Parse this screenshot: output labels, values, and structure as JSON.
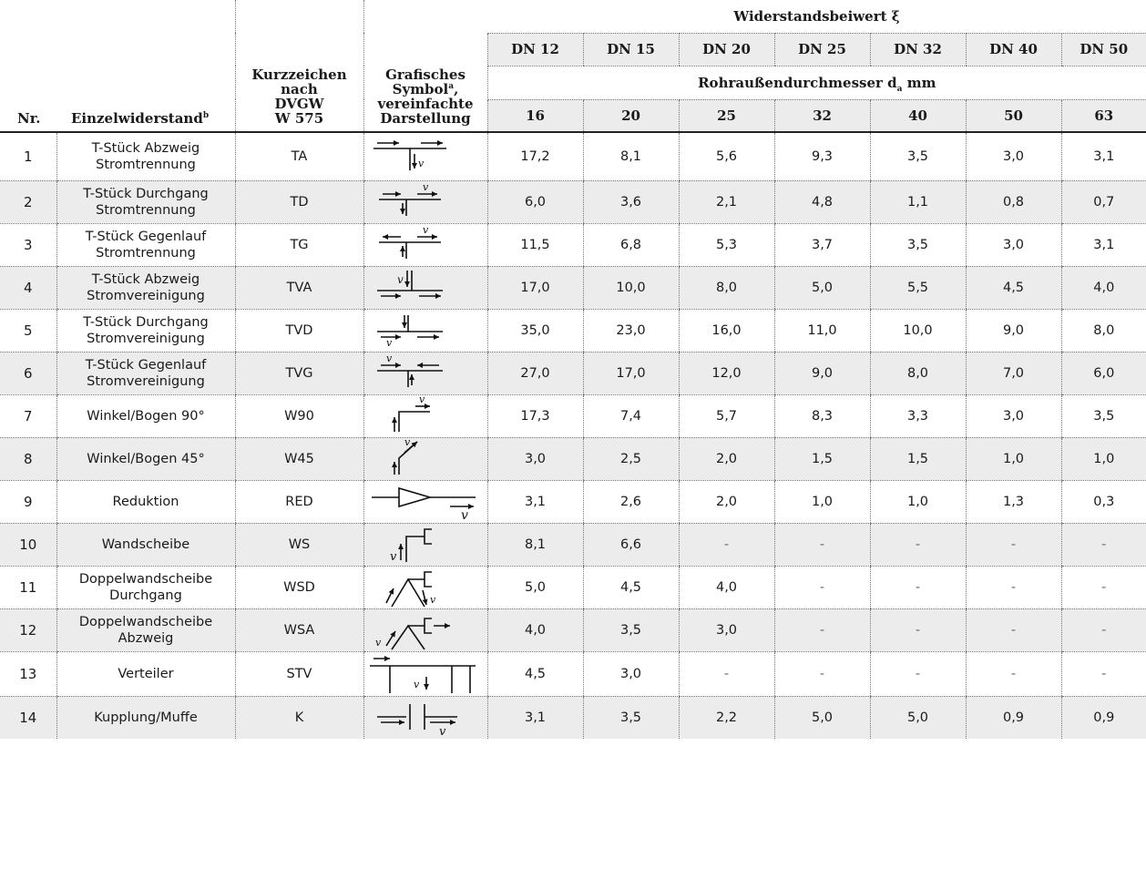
{
  "header": {
    "col_nr": "Nr.",
    "col_single": "Einzelwiderstand",
    "col_single_sup": "b",
    "col_abbr_l1": "Kurzzeichen",
    "col_abbr_l2": "nach",
    "col_abbr_l3": "DVGW",
    "col_abbr_l4": "W 575",
    "col_sym_l1": "Grafisches",
    "col_sym_l2": "Symbol",
    "col_sym_sup": "a",
    "col_sym_l2_tail": ",",
    "col_sym_l3": "vereinfachte",
    "col_sym_l4": "Darstellung",
    "group_title": "Widerstandsbeiwert ξ",
    "diameter_title_pre": "Rohraußendurchmesser d",
    "diameter_title_sub": "a",
    "diameter_title_post": " mm",
    "dn": [
      "DN 12",
      "DN 15",
      "DN 20",
      "DN 25",
      "DN 32",
      "DN 40",
      "DN 50"
    ],
    "da": [
      "16",
      "20",
      "25",
      "32",
      "40",
      "50",
      "63"
    ]
  },
  "rows": [
    {
      "nr": "1",
      "name_l1": "T-Stück Abzweig",
      "name_l2": "Stromtrennung",
      "code": "TA",
      "symbol": "tee-branch-separation-icon",
      "vals": [
        "17,2",
        "8,1",
        "5,6",
        "9,3",
        "3,5",
        "3,0",
        "3,1"
      ]
    },
    {
      "nr": "2",
      "name_l1": "T-Stück Durchgang",
      "name_l2": "Stromtrennung",
      "code": "TD",
      "symbol": "tee-through-separation-icon",
      "vals": [
        "6,0",
        "3,6",
        "2,1",
        "4,8",
        "1,1",
        "0,8",
        "0,7"
      ]
    },
    {
      "nr": "3",
      "name_l1": "T-Stück Gegenlauf",
      "name_l2": "Stromtrennung",
      "code": "TG",
      "symbol": "tee-counter-separation-icon",
      "vals": [
        "11,5",
        "6,8",
        "5,3",
        "3,7",
        "3,5",
        "3,0",
        "3,1"
      ]
    },
    {
      "nr": "4",
      "name_l1": "T-Stück Abzweig",
      "name_l2": "Stromvereinigung",
      "code": "TVA",
      "symbol": "tee-branch-merge-icon",
      "vals": [
        "17,0",
        "10,0",
        "8,0",
        "5,0",
        "5,5",
        "4,5",
        "4,0"
      ]
    },
    {
      "nr": "5",
      "name_l1": "T-Stück Durchgang",
      "name_l2": "Stromvereinigung",
      "code": "TVD",
      "symbol": "tee-through-merge-icon",
      "vals": [
        "35,0",
        "23,0",
        "16,0",
        "11,0",
        "10,0",
        "9,0",
        "8,0"
      ]
    },
    {
      "nr": "6",
      "name_l1": "T-Stück Gegenlauf",
      "name_l2": "Stromvereinigung",
      "code": "TVG",
      "symbol": "tee-counter-merge-icon",
      "vals": [
        "27,0",
        "17,0",
        "12,0",
        "9,0",
        "8,0",
        "7,0",
        "6,0"
      ]
    },
    {
      "nr": "7",
      "name_l1": "Winkel/Bogen 90°",
      "name_l2": "",
      "code": "W90",
      "symbol": "elbow-90-icon",
      "vals": [
        "17,3",
        "7,4",
        "5,7",
        "8,3",
        "3,3",
        "3,0",
        "3,5"
      ]
    },
    {
      "nr": "8",
      "name_l1": "Winkel/Bogen 45°",
      "name_l2": "",
      "code": "W45",
      "symbol": "elbow-45-icon",
      "vals": [
        "3,0",
        "2,5",
        "2,0",
        "1,5",
        "1,5",
        "1,0",
        "1,0"
      ]
    },
    {
      "nr": "9",
      "name_l1": "Reduktion",
      "name_l2": "",
      "code": "RED",
      "symbol": "reducer-icon",
      "vals": [
        "3,1",
        "2,6",
        "2,0",
        "1,0",
        "1,0",
        "1,3",
        "0,3"
      ]
    },
    {
      "nr": "10",
      "name_l1": "Wandscheibe",
      "name_l2": "",
      "code": "WS",
      "symbol": "wall-plate-icon",
      "vals": [
        "8,1",
        "6,6",
        "-",
        "-",
        "-",
        "-",
        "-"
      ]
    },
    {
      "nr": "11",
      "name_l1": "Doppelwandscheibe",
      "name_l2": "Durchgang",
      "code": "WSD",
      "symbol": "double-wall-plate-through-icon",
      "vals": [
        "5,0",
        "4,5",
        "4,0",
        "-",
        "-",
        "-",
        "-"
      ]
    },
    {
      "nr": "12",
      "name_l1": "Doppelwandscheibe",
      "name_l2": "Abzweig",
      "code": "WSA",
      "symbol": "double-wall-plate-branch-icon",
      "vals": [
        "4,0",
        "3,5",
        "3,0",
        "-",
        "-",
        "-",
        "-"
      ]
    },
    {
      "nr": "13",
      "name_l1": "Verteiler",
      "name_l2": "",
      "code": "STV",
      "symbol": "manifold-icon",
      "vals": [
        "4,5",
        "3,0",
        "-",
        "-",
        "-",
        "-",
        "-"
      ]
    },
    {
      "nr": "14",
      "name_l1": "Kupplung/Muffe",
      "name_l2": "",
      "code": "K",
      "symbol": "coupling-icon",
      "vals": [
        "3,1",
        "3,5",
        "2,2",
        "5,0",
        "5,0",
        "0,9",
        "0,9"
      ]
    }
  ],
  "symbol_label": "V"
}
